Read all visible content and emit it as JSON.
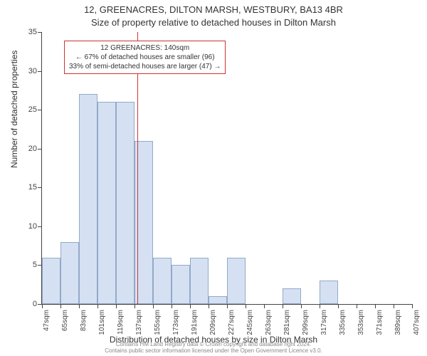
{
  "title_line1": "12, GREENACRES, DILTON MARSH, WESTBURY, BA13 4BR",
  "title_line2": "Size of property relative to detached houses in Dilton Marsh",
  "y_axis_title": "Number of detached properties",
  "x_axis_title": "Distribution of detached houses by size in Dilton Marsh",
  "footer_line1": "Contains HM Land Registry data © Crown copyright and database right 2024.",
  "footer_line2": "Contains public sector information licensed under the Open Government Licence v3.0.",
  "chart": {
    "type": "histogram",
    "ylim": [
      0,
      35
    ],
    "ytick_step": 5,
    "yticks": [
      0,
      5,
      10,
      15,
      20,
      25,
      30,
      35
    ],
    "xtick_labels": [
      "47sqm",
      "65sqm",
      "83sqm",
      "101sqm",
      "119sqm",
      "137sqm",
      "155sqm",
      "173sqm",
      "191sqm",
      "209sqm",
      "227sqm",
      "245sqm",
      "263sqm",
      "281sqm",
      "299sqm",
      "317sqm",
      "335sqm",
      "353sqm",
      "371sqm",
      "389sqm",
      "407sqm"
    ],
    "bars": [
      {
        "value": 6
      },
      {
        "value": 8
      },
      {
        "value": 27
      },
      {
        "value": 26
      },
      {
        "value": 26
      },
      {
        "value": 21
      },
      {
        "value": 6
      },
      {
        "value": 5
      },
      {
        "value": 6
      },
      {
        "value": 1
      },
      {
        "value": 6
      },
      {
        "value": 0
      },
      {
        "value": 0
      },
      {
        "value": 2
      },
      {
        "value": 0
      },
      {
        "value": 3
      },
      {
        "value": 0
      },
      {
        "value": 0
      },
      {
        "value": 0
      },
      {
        "value": 0
      }
    ],
    "bar_fill": "#d5e1f2",
    "bar_border": "#93a8c9",
    "background_color": "#ffffff",
    "axis_color": "#444444",
    "marker_position": 5.17,
    "marker_color": "#cc3333",
    "title_fontsize": 13,
    "label_fontsize": 12,
    "tick_fontsize": 11
  },
  "annotation": {
    "line1": "12 GREENACRES: 140sqm",
    "line2": "← 67% of detached houses are smaller (96)",
    "line3": "33% of semi-detached houses are larger (47) →",
    "border_color": "#cc3333",
    "background_color": "#ffffff",
    "fontsize": 10
  }
}
